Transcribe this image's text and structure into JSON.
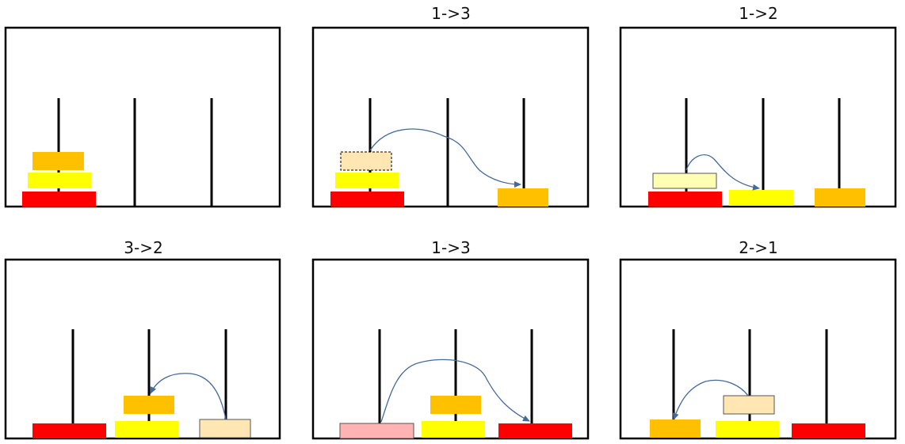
{
  "colors": {
    "red": "#ff0000",
    "yellow": "#ffff00",
    "orange": "#ffc000",
    "ghost_orange": "#ffe6b3",
    "ghost_yellow": "#ffffb3",
    "ghost_red": "#ffb3b3",
    "arrow": "#44699b",
    "frame": "#000000"
  },
  "panels": [
    {
      "title": ""
    },
    {
      "title": "1->3"
    },
    {
      "title": "1->2"
    },
    {
      "title": "3->2"
    },
    {
      "title": "1->3"
    },
    {
      "title": "2->1"
    }
  ]
}
